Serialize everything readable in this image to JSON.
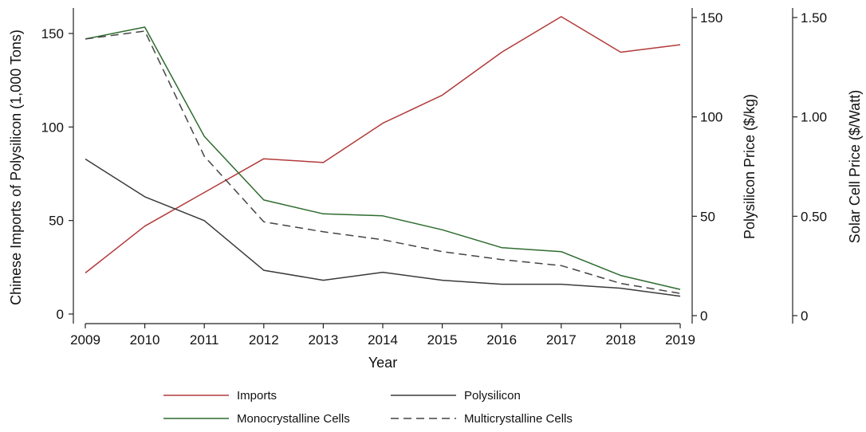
{
  "chart_data": {
    "type": "line",
    "x": [
      2009,
      2010,
      2011,
      2012,
      2013,
      2014,
      2015,
      2016,
      2017,
      2018,
      2019
    ],
    "x_tick_labels": [
      "2009",
      "2010",
      "2011",
      "2012",
      "2013",
      "2014",
      "2015",
      "2016",
      "2017",
      "2018",
      "2019"
    ],
    "xlabel": "Year",
    "axes": {
      "imports": {
        "label": "Chinese Imports of Polysilicon (1,000 Tons)",
        "range": [
          0,
          150
        ],
        "ticks": [
          0,
          50,
          100,
          150
        ],
        "tick_labels": [
          "0",
          "50",
          "100",
          "150"
        ]
      },
      "polysilicon_price": {
        "label": "Polysilicon Price ($/kg)",
        "range": [
          0,
          150
        ],
        "ticks": [
          0,
          50,
          100,
          150
        ],
        "tick_labels": [
          "0",
          "50",
          "100",
          "150"
        ]
      },
      "solar_cell_price": {
        "label": "Solar Cell Price ($/Watt)",
        "range": [
          0,
          1.5
        ],
        "ticks": [
          0,
          0.5,
          1.0,
          1.5
        ],
        "tick_labels": [
          "0",
          "0.50",
          "1.00",
          "1.50"
        ]
      }
    },
    "series": [
      {
        "name": "Imports",
        "axis": "imports",
        "color": "#b23a3a",
        "dash": "solid",
        "values": [
          22,
          47,
          65,
          83,
          81,
          102,
          117,
          140,
          159,
          140,
          144
        ]
      },
      {
        "name": "Polysilicon",
        "axis": "polysilicon_price",
        "color": "#3a3a3a",
        "dash": "solid",
        "values": [
          78,
          59,
          47,
          22,
          17,
          21,
          17,
          15,
          15,
          13,
          9
        ]
      },
      {
        "name": "Monocrystalline Cells",
        "axis": "solar_cell_price",
        "color": "#2e6b2e",
        "dash": "solid",
        "values": [
          1.4,
          1.46,
          0.91,
          0.59,
          0.52,
          0.51,
          0.44,
          0.35,
          0.33,
          0.21,
          0.14
        ]
      },
      {
        "name": "Multicrystalline Cells",
        "axis": "solar_cell_price",
        "color": "#444444",
        "dash": "dashed",
        "values": [
          1.4,
          1.44,
          0.81,
          0.48,
          0.43,
          0.39,
          0.33,
          0.29,
          0.26,
          0.17,
          0.12
        ]
      }
    ],
    "legend_position": "bottom",
    "grid": false
  }
}
